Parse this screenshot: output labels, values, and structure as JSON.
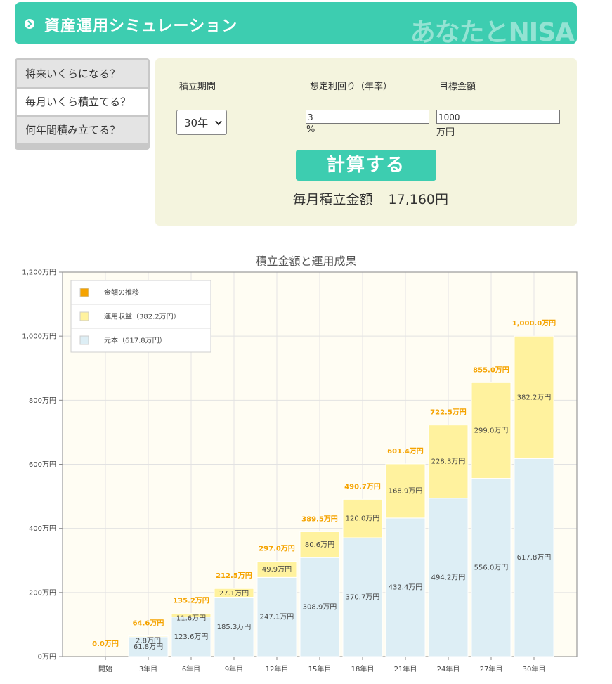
{
  "header": {
    "title": "資産運用シミュレーション",
    "brand": "あなたとNISA"
  },
  "menu": {
    "items": [
      {
        "label": "将来いくらになる？",
        "active": false
      },
      {
        "label": "毎月いくら積立てる？",
        "active": true
      },
      {
        "label": "何年間積み立てる？",
        "active": false
      }
    ]
  },
  "form": {
    "period_label": "積立期間",
    "period_value": "30年",
    "rate_label": "想定利回り（年率）",
    "rate_value": "3",
    "rate_unit": "%",
    "target_label": "目標金額",
    "target_value": "1000",
    "target_unit": "万円",
    "calc_button": "計算する",
    "result_label": "毎月積立金額",
    "result_value": "17,160円"
  },
  "chart_data": {
    "type": "bar",
    "title": "積立金額と運用成果",
    "categories": [
      "開始",
      "3年目",
      "6年目",
      "9年目",
      "12年目",
      "15年目",
      "18年目",
      "21年目",
      "24年目",
      "27年目",
      "30年目"
    ],
    "y_ticks": [
      "0万円",
      "200万円",
      "400万円",
      "600万円",
      "800万円",
      "1,000万円",
      "1,200万円"
    ],
    "ylim": [
      0,
      1200
    ],
    "legend_position": "top-left",
    "legend": [
      {
        "label": "金額の推移",
        "color": "#f5a300"
      },
      {
        "label": "運用収益（382.2万円）",
        "color": "#fff29e"
      },
      {
        "label": "元本（617.8万円）",
        "color": "#ddeef5"
      }
    ],
    "series": [
      {
        "name": "元本（617.8万円）",
        "color": "#ddeef5",
        "values": [
          0,
          61.8,
          123.6,
          185.3,
          247.1,
          308.9,
          370.7,
          432.4,
          494.2,
          556.0,
          617.8
        ],
        "labels": [
          "",
          "61.8万円",
          "123.6万円",
          "185.3万円",
          "247.1万円",
          "308.9万円",
          "370.7万円",
          "432.4万円",
          "494.2万円",
          "556.0万円",
          "617.8万円"
        ]
      },
      {
        "name": "運用収益（382.2万円）",
        "color": "#fff29e",
        "values": [
          0,
          2.8,
          11.6,
          27.1,
          49.9,
          80.6,
          120.0,
          168.9,
          228.3,
          299.0,
          382.2
        ],
        "labels": [
          "",
          "2.8万円",
          "11.6万円",
          "27.1万円",
          "49.9万円",
          "80.6万円",
          "120.0万円",
          "168.9万円",
          "228.3万円",
          "299.0万円",
          "382.2万円"
        ]
      },
      {
        "name": "金額の推移",
        "color": "#f5a300",
        "values": [
          0.0,
          64.6,
          135.2,
          212.5,
          297.0,
          389.5,
          490.7,
          601.4,
          722.5,
          855.0,
          1000.0
        ],
        "labels": [
          "0.0万円",
          "64.6万円",
          "135.2万円",
          "212.5万円",
          "297.0万円",
          "389.5万円",
          "490.7万円",
          "601.4万円",
          "722.5万円",
          "855.0万円",
          "1,000.0万円"
        ]
      }
    ],
    "grid": true
  }
}
